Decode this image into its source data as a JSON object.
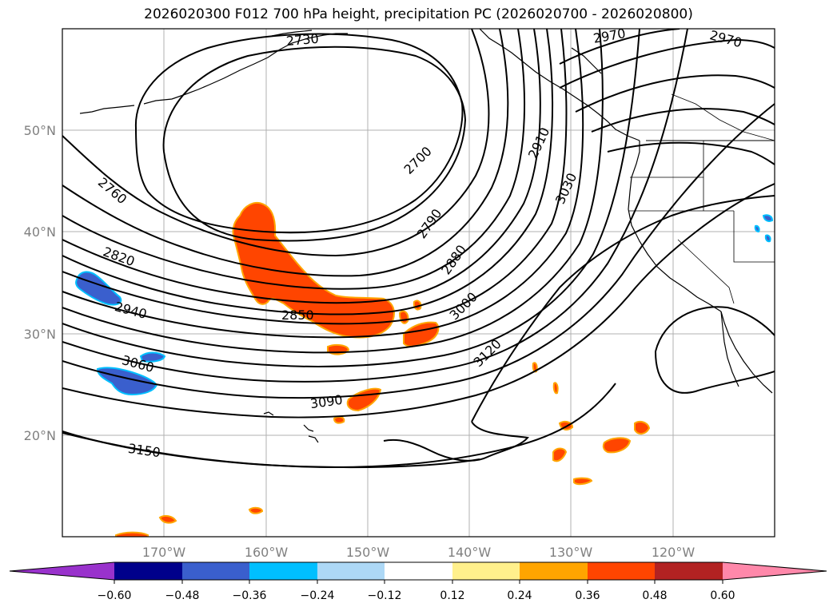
{
  "title": "2026020300 F012 700 hPa height, precipitation PC (2026020700 - 2026020800)",
  "map": {
    "lat_labels": [
      "50°N",
      "40°N",
      "30°N",
      "20°N"
    ],
    "lon_labels": [
      "170°W",
      "160°W",
      "150°W",
      "140°W",
      "130°W",
      "120°W"
    ],
    "contour_labels": [
      "2730",
      "2970",
      "2970",
      "2700",
      "2910",
      "3030",
      "2760",
      "2790",
      "2880",
      "2820",
      "3000",
      "2940",
      "2850",
      "3120",
      "3060",
      "3090",
      "3150"
    ],
    "line_color": "#000000",
    "positive_fill": "#ff4500",
    "positive_edge": "#ffa500",
    "negative_fill": "#3a5fcd",
    "negative_edge": "#00bfff"
  },
  "colorbar": {
    "ticks": [
      "−0.60",
      "−0.48",
      "−0.36",
      "−0.24",
      "−0.12",
      "0.12",
      "0.24",
      "0.36",
      "0.48",
      "0.60"
    ],
    "colors": [
      "#9932cc",
      "#00008b",
      "#3a5fcd",
      "#00bfff",
      "#add8f6",
      "#ffffff",
      "#fff08c",
      "#ffa500",
      "#ff4500",
      "#b22222",
      "#ff88aa",
      "#ff88aa"
    ]
  }
}
